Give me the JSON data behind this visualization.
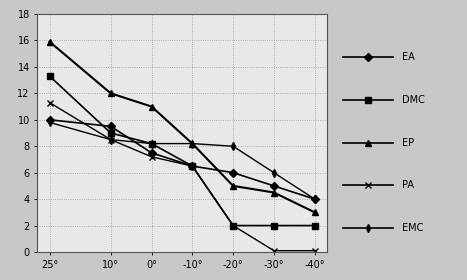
{
  "x_labels": [
    "25°",
    "10°",
    "0°",
    "-10°",
    "-20°",
    "-30°",
    "-40°"
  ],
  "x_values": [
    25,
    10,
    0,
    -10,
    -20,
    -30,
    -40
  ],
  "series": {
    "EA": [
      10.0,
      9.5,
      7.5,
      6.5,
      6.0,
      5.0,
      4.0
    ],
    "DMC": [
      13.3,
      9.0,
      8.2,
      6.5,
      2.0,
      2.0,
      2.0
    ],
    "EP": [
      15.9,
      12.0,
      11.0,
      8.2,
      5.0,
      4.5,
      3.0
    ],
    "PA": [
      11.3,
      8.5,
      7.2,
      6.5,
      2.0,
      0.1,
      0.1
    ],
    "EMC": [
      9.8,
      8.5,
      8.2,
      8.2,
      8.0,
      6.0,
      4.0
    ]
  },
  "line_styles": {
    "EA": {
      "marker": "D",
      "lw": 1.2,
      "ms": 4
    },
    "DMC": {
      "marker": "s",
      "lw": 1.2,
      "ms": 4
    },
    "EP": {
      "marker": "^",
      "lw": 1.5,
      "ms": 5
    },
    "PA": {
      "marker": "x",
      "lw": 1.0,
      "ms": 4
    },
    "EMC": {
      "marker": "d",
      "lw": 1.0,
      "ms": 4
    }
  },
  "ylim": [
    0,
    18
  ],
  "yticks": [
    0,
    2,
    4,
    6,
    8,
    10,
    12,
    14,
    16,
    18
  ],
  "grid_color": "#999999",
  "plot_bg": "#e8e8e8",
  "fig_bg": "#c8c8c8",
  "legend_bg": "#f0f0f0",
  "tick_fontsize": 7,
  "legend_fontsize": 7
}
